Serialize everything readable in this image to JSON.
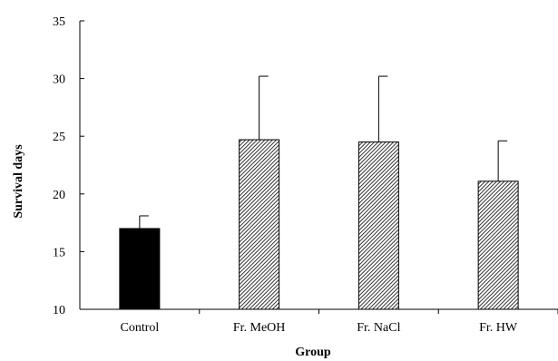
{
  "chart_data": {
    "type": "bar",
    "title": "",
    "xlabel": "Group",
    "ylabel": "Survival  days",
    "categories": [
      "Control",
      "Fr. MeOH",
      "Fr. NaCl",
      "Fr. HW"
    ],
    "values": [
      17.0,
      24.7,
      24.5,
      21.1
    ],
    "error_plus": [
      1.1,
      5.5,
      5.7,
      3.5
    ],
    "bar_fills": [
      "solid",
      "hatched",
      "hatched",
      "hatched"
    ],
    "ylim": [
      10,
      35
    ],
    "yticks": [
      10,
      15,
      20,
      25,
      30,
      35
    ],
    "grid": false,
    "legend": "none",
    "colors": {
      "solid": "#000000",
      "hatched_fg": "#000000",
      "hatched_bg": "#ffffff"
    }
  }
}
